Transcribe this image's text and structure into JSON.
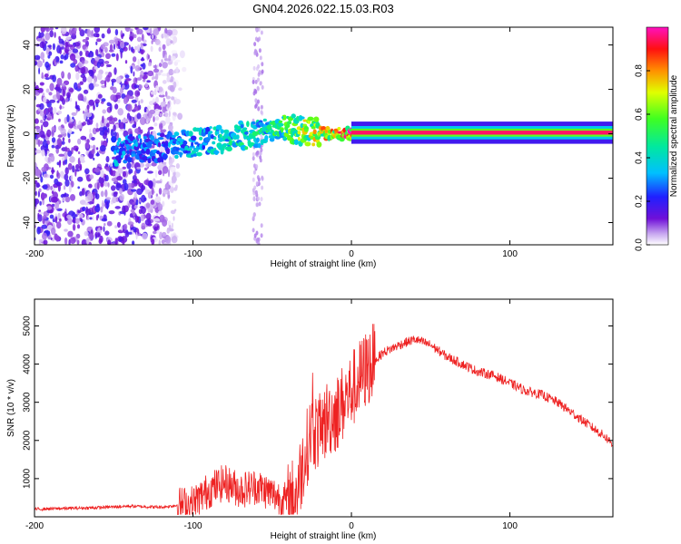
{
  "chart_data": [
    {
      "type": "heatmap",
      "title": "GN04.2026.022.15.03.R03",
      "xlabel": "Height of straight line (km)",
      "ylabel": "Frequency (Hz)",
      "xlim": [
        -200,
        165
      ],
      "ylim": [
        -50,
        48
      ],
      "xticks": [
        -200,
        -100,
        0,
        100
      ],
      "yticks": [
        -40,
        -20,
        0,
        20,
        40
      ],
      "colorbar": {
        "label": "Normalized spectral amplitude",
        "range": [
          0,
          1
        ],
        "ticks": [
          "0.0",
          "0.2",
          "0.4",
          "0.6",
          "0.8"
        ],
        "colormap": "rainbow"
      },
      "description_points": {
        "noise_region_x": [
          -200,
          -110
        ],
        "ridge": [
          {
            "x": -150,
            "f": -8,
            "a": 0.35
          },
          {
            "x": -120,
            "f": -6,
            "a": 0.3
          },
          {
            "x": -100,
            "f": -4,
            "a": 0.4
          },
          {
            "x": -80,
            "f": -2,
            "a": 0.45
          },
          {
            "x": -60,
            "f": 0,
            "a": 0.5
          },
          {
            "x": -45,
            "f": 4,
            "a": 0.55
          },
          {
            "x": -30,
            "f": 1,
            "a": 0.7
          },
          {
            "x": -10,
            "f": 0,
            "a": 0.85
          },
          {
            "x": 0,
            "f": 0,
            "a": 0.95
          },
          {
            "x": 50,
            "f": 0.5,
            "a": 0.95
          },
          {
            "x": 100,
            "f": 0.5,
            "a": 0.95
          },
          {
            "x": 160,
            "f": 0.5,
            "a": 0.9
          }
        ]
      }
    },
    {
      "type": "line",
      "title": "",
      "xlabel": "Height of straight line (km)",
      "ylabel": "SNR (10 * v/v)",
      "xlim": [
        -200,
        165
      ],
      "ylim": [
        0,
        5700
      ],
      "xticks": [
        -200,
        -100,
        0,
        100
      ],
      "yticks": [
        1000,
        2000,
        3000,
        4000,
        5000
      ],
      "series": [
        {
          "name": "SNR",
          "color": "#ee2222",
          "x": [
            -200,
            -180,
            -160,
            -140,
            -120,
            -110,
            -100,
            -90,
            -80,
            -70,
            -60,
            -50,
            -40,
            -35,
            -30,
            -25,
            -20,
            -15,
            -10,
            -5,
            0,
            10,
            20,
            30,
            40,
            50,
            60,
            70,
            80,
            90,
            100,
            110,
            120,
            130,
            140,
            150,
            160,
            165
          ],
          "values": [
            200,
            220,
            240,
            280,
            250,
            300,
            350,
            700,
            900,
            700,
            800,
            600,
            400,
            600,
            1500,
            2300,
            2200,
            2600,
            2700,
            3000,
            3300,
            3900,
            4300,
            4500,
            4650,
            4500,
            4200,
            4000,
            3800,
            3700,
            3500,
            3300,
            3200,
            3000,
            2700,
            2400,
            2100,
            1900
          ]
        }
      ]
    }
  ]
}
